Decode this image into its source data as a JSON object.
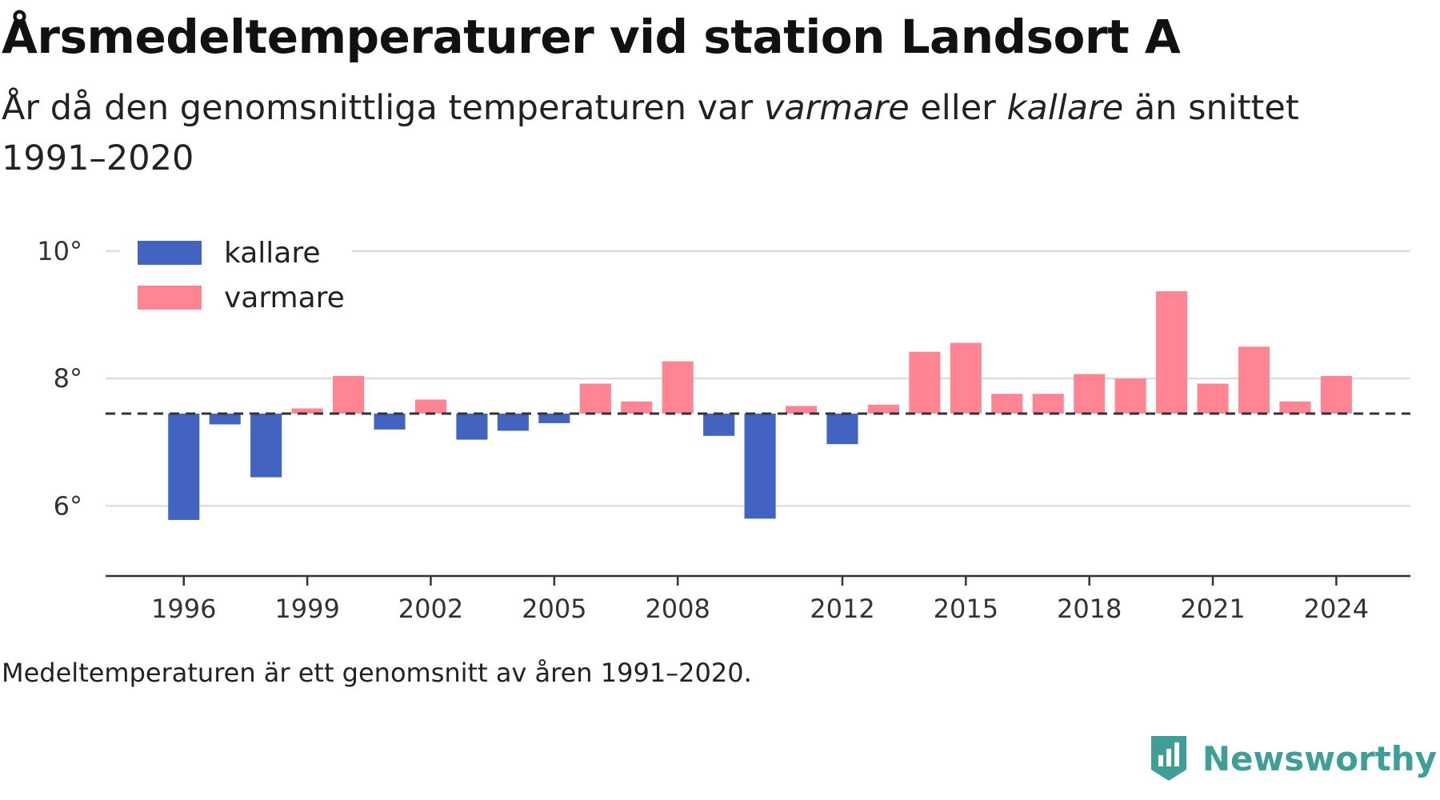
{
  "title": "Årsmedeltemperaturer vid station Landsort A",
  "subtitle": {
    "part1": "År då den genomsnittliga temperaturen var ",
    "warmer_word": "varmare",
    "part2": " eller ",
    "colder_word": "kallare",
    "part3": " än snittet 1991–2020"
  },
  "footnote": "Medeltemperaturen är ett genomsnitt av åren 1991–2020.",
  "brand": "Newsworthy",
  "colors": {
    "colder": "#4263c0",
    "warmer": "#ff8595",
    "grid": "#dddddd",
    "axis": "#333333",
    "baseline": "#333333",
    "brand": "#3f9e95"
  },
  "chart_data": {
    "type": "bar",
    "baseline": 7.45,
    "ylim": [
      4.9,
      10.3
    ],
    "y_ticks": [
      6,
      8,
      10
    ],
    "y_tick_labels": [
      "6°",
      "8°",
      "10°"
    ],
    "x_ticks": [
      1996,
      1999,
      2002,
      2005,
      2008,
      2012,
      2015,
      2018,
      2021,
      2024
    ],
    "x_tick_labels": [
      "1996",
      "1999",
      "2002",
      "2005",
      "2008",
      "2012",
      "2015",
      "2018",
      "2021",
      "2024"
    ],
    "xlim": [
      1994.1,
      2025.8
    ],
    "grid": true,
    "legend": {
      "placement": "top-left",
      "entries": [
        {
          "label": "kallare",
          "color": "#4263c0"
        },
        {
          "label": "varmare",
          "color": "#ff8595"
        }
      ]
    },
    "categories": [
      1996,
      1997,
      1998,
      1999,
      2000,
      2001,
      2002,
      2003,
      2004,
      2005,
      2006,
      2007,
      2008,
      2009,
      2010,
      2011,
      2012,
      2013,
      2014,
      2015,
      2016,
      2017,
      2018,
      2019,
      2020,
      2021,
      2022,
      2023,
      2024
    ],
    "values": [
      5.78,
      7.28,
      6.45,
      7.53,
      8.04,
      7.2,
      7.67,
      7.04,
      7.18,
      7.3,
      7.92,
      7.64,
      8.27,
      7.1,
      5.8,
      7.57,
      6.97,
      7.59,
      8.42,
      8.56,
      7.76,
      7.76,
      8.07,
      8.0,
      9.37,
      7.92,
      8.5,
      7.64,
      8.04
    ]
  }
}
